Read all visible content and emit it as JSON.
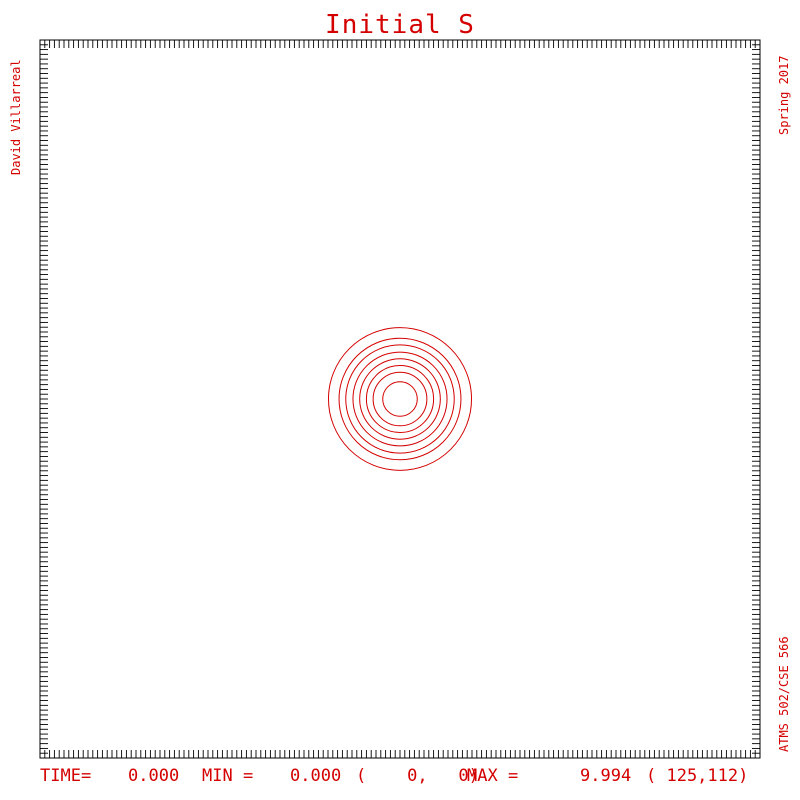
{
  "chart_data": {
    "type": "contour",
    "title": "Initial S",
    "author": "David Villarreal",
    "term": "Spring 2017",
    "course": "ATMS 502/CSE 566",
    "status": {
      "time_label": "TIME=",
      "time": "0.000",
      "min_label": "MIN =",
      "min": "0.000",
      "min_loc": "(    0,   0)",
      "max_label": "MAX =",
      "max": "9.994",
      "max_loc": "( 125,112)"
    },
    "grid": true,
    "grid_n": 151,
    "domain": {
      "x": [
        1,
        151
      ],
      "y": [
        1,
        151
      ]
    },
    "center": {
      "x": 76,
      "y": 76
    },
    "contour_radii": [
      3.6,
      5.6,
      7.0,
      8.4,
      9.8,
      11.3,
      12.7,
      14.9
    ],
    "color": "#d40000"
  }
}
